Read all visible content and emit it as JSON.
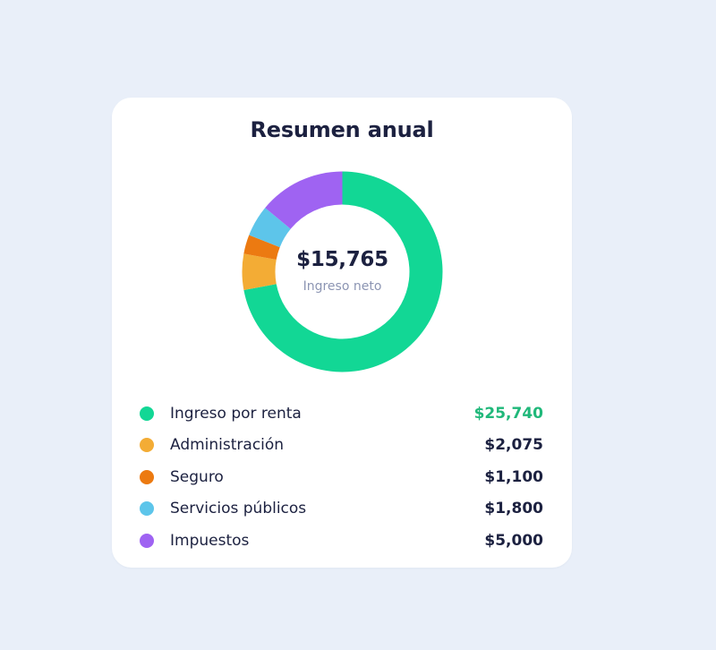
{
  "card": {
    "title": "Resumen anual"
  },
  "chart_data": {
    "type": "pie",
    "donut": true,
    "title": "Resumen anual",
    "center_value": "$15,765",
    "center_label": "Ingreso neto",
    "net_income": 15765,
    "categories": [
      "Ingreso por renta",
      "Administración",
      "Seguro",
      "Servicios públicos",
      "Impuestos"
    ],
    "values": [
      25740,
      2075,
      1100,
      1800,
      5000
    ],
    "value_labels": [
      "$25,740",
      "$2,075",
      "$1,100",
      "$1,800",
      "$5,000"
    ],
    "colors": [
      "#12d795",
      "#f3ac35",
      "#ec7a11",
      "#5dc5ea",
      "#9f63f2"
    ],
    "legend_placement": "bottom"
  },
  "legend": {
    "items": [
      {
        "label": "Ingreso por renta",
        "value": "$25,740",
        "color": "#12d795",
        "icon": "green-dot-icon",
        "emphasis": true
      },
      {
        "label": "Administración",
        "value": "$2,075",
        "color": "#f3ac35",
        "icon": "yellow-dot-icon"
      },
      {
        "label": "Seguro",
        "value": "$1,100",
        "color": "#ec7a11",
        "icon": "orange-dot-icon"
      },
      {
        "label": "Servicios públicos",
        "value": "$1,800",
        "color": "#5dc5ea",
        "icon": "blue-dot-icon"
      },
      {
        "label": "Impuestos",
        "value": "$5,000",
        "color": "#9f63f2",
        "icon": "purple-dot-icon"
      }
    ]
  }
}
